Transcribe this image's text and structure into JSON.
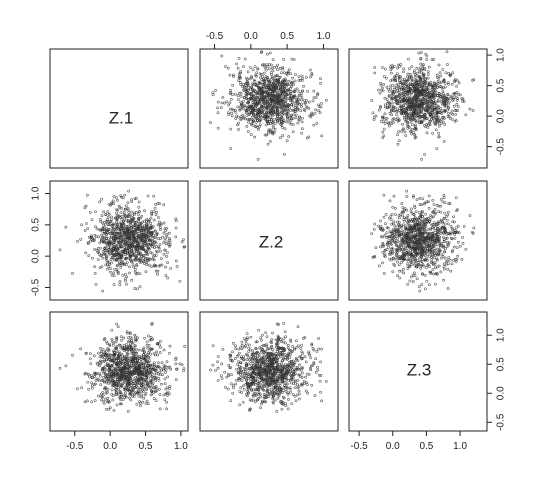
{
  "chart_data": {
    "type": "scatter",
    "variables": [
      "Z.1",
      "Z.2",
      "Z.3"
    ],
    "n_points_per_panel": 1000,
    "distribution": {
      "Z.1": {
        "mean": 0.25,
        "sd": 0.27
      },
      "Z.2": {
        "mean": 0.25,
        "sd": 0.27
      },
      "Z.3": {
        "mean": 0.4,
        "sd": 0.27
      }
    },
    "axes": {
      "Z.1": {
        "range": [
          -0.85,
          1.1
        ],
        "ticks": [
          -0.5,
          0.0,
          0.5,
          1.0
        ]
      },
      "Z.2": {
        "range": [
          -0.7,
          1.2
        ],
        "ticks": [
          -0.5,
          0.0,
          0.5,
          1.0
        ]
      },
      "Z.3": {
        "range": [
          -0.65,
          1.4
        ],
        "ticks": [
          -0.5,
          0.0,
          0.5,
          1.0
        ]
      }
    },
    "tick_labels": [
      "-0.5",
      "0.0",
      "0.5",
      "1.0"
    ],
    "marker": "open-circle",
    "point_color": "#333333",
    "grid": false,
    "legend": "none"
  }
}
